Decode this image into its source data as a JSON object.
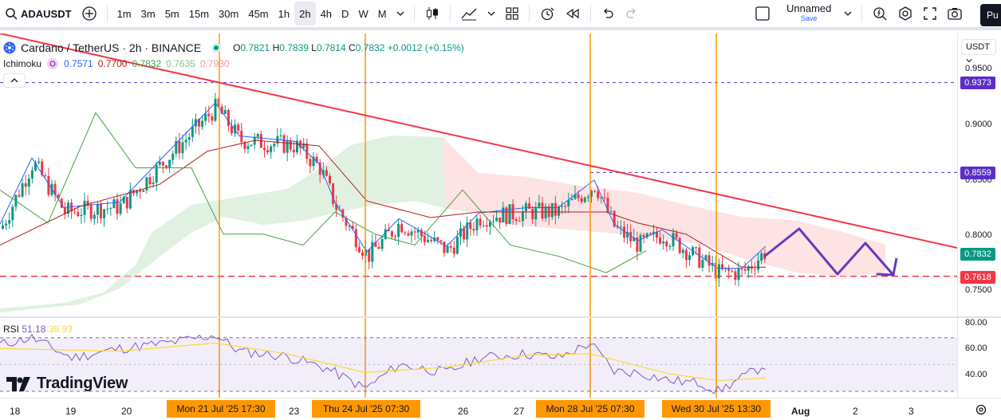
{
  "toolbar": {
    "symbol": "ADAUSDT",
    "intervals": [
      "1m",
      "3m",
      "5m",
      "15m",
      "30m",
      "45m",
      "1h",
      "2h",
      "4h",
      "D",
      "W",
      "M"
    ],
    "active_interval": "2h",
    "layout_name": "Unnamed",
    "layout_save": "Save",
    "publish_label": "Pu"
  },
  "legend": {
    "title": "Cardano / TetherUS · 2h · BINANCE",
    "o_key": "O",
    "o_val": "0.7821",
    "h_key": "H",
    "h_val": "0.7839",
    "l_key": "L",
    "l_val": "0.7814",
    "c_key": "C",
    "c_val": "0.7832",
    "change": "+0.0012 (+0.15%)",
    "ichimoku_name": "Ichimoku",
    "ichimoku_vals": [
      "0.7571",
      "0.7700",
      "0.7832",
      "0.7635",
      "0.7930"
    ],
    "ichimoku_colors": [
      "#2962ff",
      "#b71c1c",
      "#43a047",
      "#a5d6a7",
      "#ef9a9a"
    ]
  },
  "rsi": {
    "name": "RSI",
    "value": "51.18",
    "ma": "39.93"
  },
  "price_scale": {
    "currency": "USDT",
    "labels": [
      "0.9500",
      "0.9000",
      "0.8500",
      "0.8000",
      "0.7500"
    ],
    "tag_top": "0.9373",
    "tag_mid": "0.8559",
    "tag_last": "0.7832",
    "tag_support": "0.7618",
    "rsi_labels": [
      "80.00",
      "60.00",
      "40.00"
    ]
  },
  "time_axis": {
    "labels": [
      "18",
      "19",
      "20",
      "23",
      "26",
      "27",
      "Aug",
      "2",
      "3"
    ],
    "highlighted": [
      "Mon 21 Jul '25   17:30",
      "Thu 24 Jul '25   07:30",
      "Mon 28 Jul '25   07:30",
      "Wed 30 Jul '25   13:30"
    ]
  },
  "colors": {
    "up": "#089981",
    "down": "#f23645",
    "trend": "#f23645",
    "vertical": "#ff9800",
    "forecast": "#673ab7",
    "tag_purple": "#5b2ec7",
    "tag_green": "#089981",
    "tag_red": "#f23645"
  },
  "branding": "TradingView"
}
